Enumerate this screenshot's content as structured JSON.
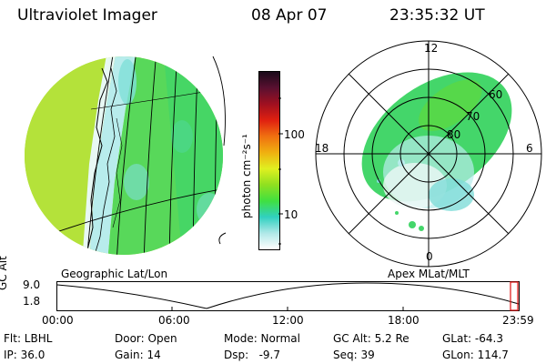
{
  "header": {
    "title": "Ultraviolet Imager",
    "date": "08 Apr 07",
    "time": "23:35:32 UT"
  },
  "colorbar": {
    "unit_label": "photon cm⁻²s⁻¹",
    "ticks": [
      "100",
      "10"
    ],
    "colors": [
      "#1a0a1a",
      "#5a1030",
      "#a01020",
      "#e02010",
      "#f07010",
      "#f0b010",
      "#e0f020",
      "#90e020",
      "#40e040",
      "#30d0c0",
      "#b0e8e8",
      "#ffffff"
    ]
  },
  "left_panel": {
    "label": "Geographic Lat/Lon"
  },
  "right_panel": {
    "label": "Apex MLat/MLT",
    "mlt_labels": {
      "top": "12",
      "left": "18",
      "right": "6",
      "bottom": "0"
    },
    "mlat_labels": [
      "60",
      "70",
      "80"
    ]
  },
  "altitude_plot": {
    "ylabel": "GC Alt",
    "y_ticks": [
      "9.0",
      "1.8"
    ],
    "x_ticks": [
      "00:00",
      "06:00",
      "12:00",
      "18:00",
      "23:59"
    ]
  },
  "info": {
    "flt": "Flt: LBHL",
    "door": "Door: Open",
    "mode": "Mode: Normal",
    "gc_alt": "GC Alt: 5.2 Re",
    "glat": "GLat: -64.3",
    "ip": "IP: 36.0",
    "gain": "Gain: 14",
    "dsp": "Dsp:   -9.7",
    "seq": "Seq: 39",
    "glon": "GLon: 114.7"
  }
}
